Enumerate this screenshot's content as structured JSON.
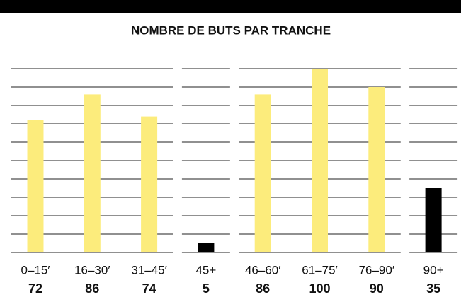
{
  "chart_data": {
    "type": "bar",
    "title": "NOMBRE DE BUTS PAR TRANCHE",
    "categories": [
      "0–15′",
      "16–30′",
      "31–45′",
      "45+",
      "46–60′",
      "61–75′",
      "76–90′",
      "90+"
    ],
    "values": [
      72,
      86,
      74,
      5,
      86,
      100,
      90,
      35
    ],
    "colors": [
      "#fcec7c",
      "#fcec7c",
      "#fcec7c",
      "#000000",
      "#fcec7c",
      "#fcec7c",
      "#fcec7c",
      "#000000"
    ],
    "ylim": [
      0,
      100
    ],
    "yticks": [
      0,
      10,
      20,
      30,
      40,
      50,
      60,
      70,
      80,
      90,
      100
    ],
    "grid": true
  }
}
